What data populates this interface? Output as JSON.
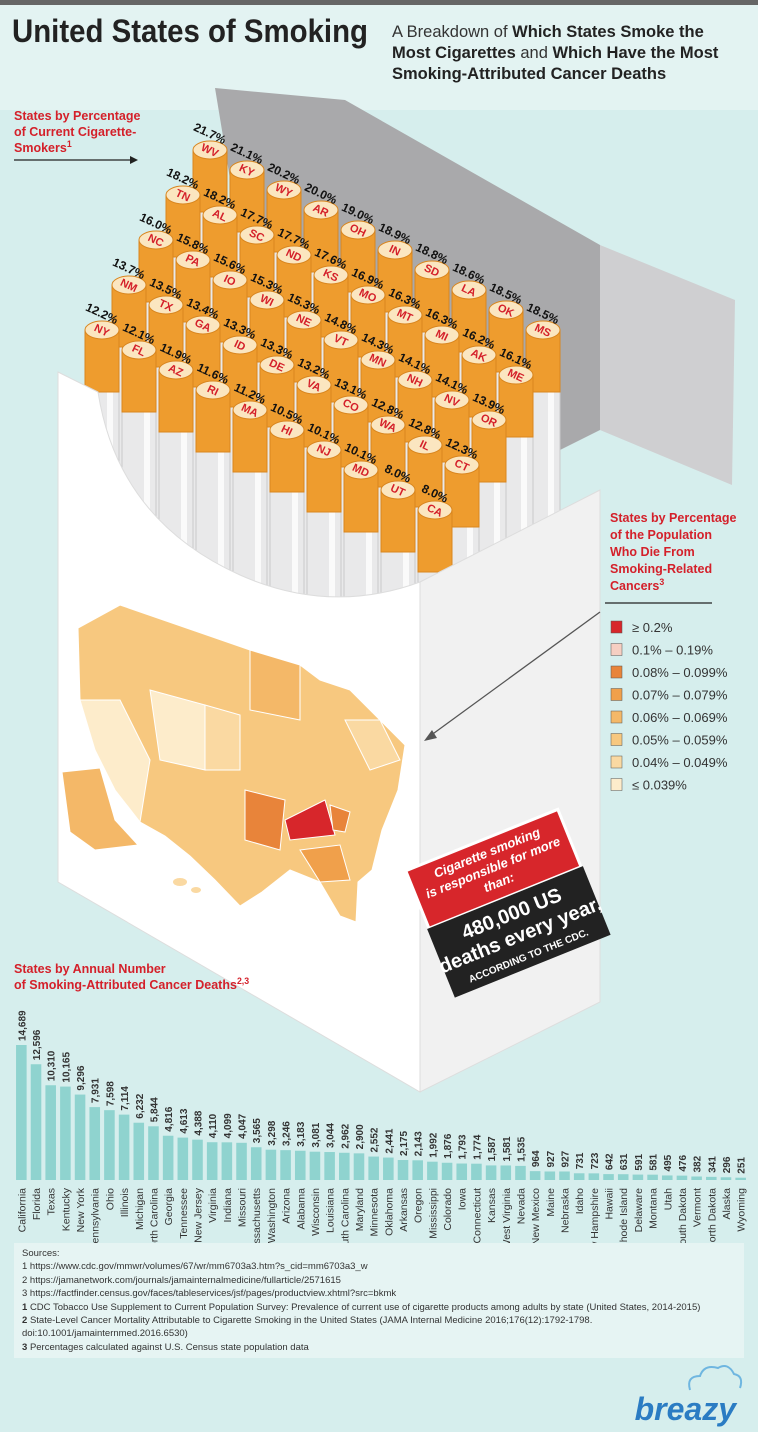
{
  "header": {
    "title": "United States of Smoking",
    "subtitle": [
      "A Breakdown of ",
      "Which States Smoke the Most Cigarettes",
      " and ",
      "Which Have the Most Smoking-Attributed Cancer Deaths"
    ]
  },
  "cigarettes": {
    "title_lines": [
      "States by Percentage",
      "of Current Cigarette-",
      "Smokers"
    ],
    "title_sup": "1",
    "states": [
      "WV",
      "KY",
      "WY",
      "AR",
      "OH",
      "IN",
      "SD",
      "LA",
      "OK",
      "MS",
      "TN",
      "AL",
      "SC",
      "ND",
      "KS",
      "MO",
      "MT",
      "MI",
      "AK",
      "ME",
      "NC",
      "PA",
      "IO",
      "WI",
      "NE",
      "VT",
      "MN",
      "NH",
      "NV",
      "OR",
      "NM",
      "TX",
      "GA",
      "ID",
      "DE",
      "VA",
      "CO",
      "WA",
      "IL",
      "CT",
      "NY",
      "FL",
      "AZ",
      "RI",
      "MA",
      "HI",
      "NJ",
      "MD",
      "UT",
      "CA"
    ],
    "values": [
      21.7,
      21.1,
      20.2,
      20.0,
      19.0,
      18.9,
      18.8,
      18.6,
      18.5,
      18.5,
      18.2,
      18.2,
      17.7,
      17.7,
      17.6,
      16.9,
      16.3,
      16.3,
      16.2,
      16.1,
      16.0,
      15.8,
      15.6,
      15.3,
      15.3,
      14.8,
      14.3,
      14.1,
      14.1,
      13.9,
      13.7,
      13.5,
      13.4,
      13.3,
      13.3,
      13.2,
      13.1,
      12.8,
      12.8,
      12.3,
      12.2,
      12.1,
      11.9,
      11.6,
      11.2,
      10.5,
      10.1,
      10.1,
      8.0,
      8.0
    ],
    "value_labels": [
      "21.7%",
      "21.1%",
      "20.2%",
      "20.0%",
      "19.0%",
      "18.9%",
      "18.8%",
      "18.6%",
      "18.5%",
      "18.5%",
      "18.2%",
      "18.2%",
      "17.7%",
      "17.7%",
      "17.6%",
      "16.9%",
      "16.3%",
      "16.3%",
      "16.2%",
      "16.1%",
      "16.0%",
      "15.8%",
      "15.6%",
      "15.3%",
      "15.3%",
      "14.8%",
      "14.3%",
      "14.1%",
      "14.1%",
      "13.9%",
      "13.7%",
      "13.5%",
      "13.4%",
      "13.3%",
      "13.3%",
      "13.2%",
      "13.1%",
      "12.8%",
      "12.8%",
      "12.3%",
      "12.2%",
      "12.1%",
      "11.9%",
      "11.6%",
      "11.2%",
      "10.5%",
      "10.1%",
      "10.1%",
      "8.0%",
      "8.0%"
    ]
  },
  "map": {
    "title_lines": [
      "States by Percentage",
      "of the Population",
      "Who Die From",
      "Smoking-Related",
      "Cancers"
    ],
    "title_sup": "3",
    "legend": [
      {
        "label": "≥ 0.2%",
        "color": "#d7262b"
      },
      {
        "label": "0.1% – 0.19%",
        "color": "#f6cfc2"
      },
      {
        "label": "0.08% – 0.099%",
        "color": "#e8843a"
      },
      {
        "label": "0.07% – 0.079%",
        "color": "#f0a04b"
      },
      {
        "label": "0.06% – 0.069%",
        "color": "#f4b868"
      },
      {
        "label": "0.05% – 0.059%",
        "color": "#f7c87f"
      },
      {
        "label": "0.04% – 0.049%",
        "color": "#fad9a2"
      },
      {
        "label": "≤ 0.039%",
        "color": "#fdeccb"
      }
    ]
  },
  "callout": {
    "top_lines": [
      "Cigarette smoking",
      "is responsible for more",
      "than:"
    ],
    "big_lines": [
      "480,000 US",
      "deaths every year,"
    ],
    "source": "ACCORDING TO THE CDC."
  },
  "chart_data": {
    "type": "bar",
    "title_lines": [
      "States by Annual Number",
      "of Smoking-Attributed Cancer Deaths"
    ],
    "title_sup": "2,3",
    "color": "#8fd3cf",
    "categories": [
      "California",
      "Florida",
      "Texas",
      "Kentucky",
      "New York",
      "Pennsylvania",
      "Ohio",
      "Illinois",
      "Michigan",
      "North Carolina",
      "Georgia",
      "Tennessee",
      "New Jersey",
      "Virginia",
      "Indiana",
      "Missouri",
      "Massachusetts",
      "Washington",
      "Arizona",
      "Alabama",
      "Wisconsin",
      "Louisiana",
      "South Carolina",
      "Maryland",
      "Minnesota",
      "Oklahoma",
      "Arkansas",
      "Oregon",
      "Mississippi",
      "Colorado",
      "Iowa",
      "Connecticut",
      "Kansas",
      "West Virginia",
      "Nevada",
      "New Mexico",
      "Maine",
      "Nebraska",
      "Idaho",
      "New Hampshire",
      "Hawaii",
      "Rhode Island",
      "Delaware",
      "Montana",
      "Utah",
      "South Dakota",
      "Vermont",
      "North Dakota",
      "Alaska",
      "Wyoming"
    ],
    "values": [
      14689,
      12596,
      10310,
      10165,
      9296,
      7931,
      7598,
      7114,
      6232,
      5844,
      4816,
      4613,
      4388,
      4110,
      4099,
      4047,
      3565,
      3298,
      3246,
      3183,
      3081,
      3044,
      2962,
      2900,
      2552,
      2441,
      2175,
      2143,
      1992,
      1876,
      1793,
      1774,
      1587,
      1581,
      1535,
      964,
      927,
      927,
      731,
      723,
      642,
      631,
      591,
      581,
      495,
      476,
      382,
      341,
      296,
      251
    ],
    "value_labels": [
      "14,689",
      "12,596",
      "10,310",
      "10,165",
      "9,296",
      "7,931",
      "7,598",
      "7,114",
      "6,232",
      "5,844",
      "4,816",
      "4,613",
      "4,388",
      "4,110",
      "4,099",
      "4,047",
      "3,565",
      "3,298",
      "3,246",
      "3,183",
      "3,081",
      "3,044",
      "2,962",
      "2,900",
      "2,552",
      "2,441",
      "2,175",
      "2,143",
      "1,992",
      "1,876",
      "1,793",
      "1,774",
      "1,587",
      "1,581",
      "1,535",
      "964",
      "927",
      "927",
      "731",
      "723",
      "642",
      "631",
      "591",
      "581",
      "495",
      "476",
      "382",
      "341",
      "296",
      "251"
    ]
  },
  "sources": {
    "title": "Sources:",
    "links": [
      "1 https://www.cdc.gov/mmwr/volumes/67/wr/mm6703a3.htm?s_cid=mm6703a3_w",
      "2 https://jamanetwork.com/journals/jamainternalmedicine/fullarticle/2571615",
      "3 https://factfinder.census.gov/faces/tableservices/jsf/pages/productview.xhtml?src=bkmk"
    ],
    "notes": [
      {
        "number": "1",
        "text": "CDC Tobacco Use Supplement to Current Population Survey: Prevalence of current use of cigarette products among adults by state (United States, 2014-2015)"
      },
      {
        "number": "2",
        "text": "State-Level Cancer Mortality Attributable to Cigarette Smoking in the United States (JAMA Internal Medicine 2016;176(12):1792-1798. doi:10.1001/jamainternmed.2016.6530)"
      },
      {
        "number": "3",
        "text": "Percentages calculated against U.S. Census state population data"
      }
    ]
  },
  "logo": "breazy"
}
